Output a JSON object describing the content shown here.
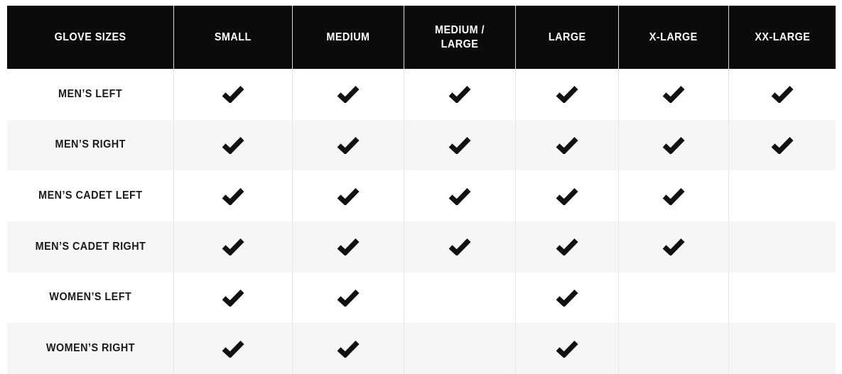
{
  "table": {
    "title": "GLOVE SIZES",
    "header": {
      "columns": [
        "GLOVE SIZES",
        "SMALL",
        "MEDIUM",
        "MEDIUM / LARGE",
        "LARGE",
        "X-LARGE",
        "XX-LARGE"
      ]
    },
    "rows": [
      {
        "label": "MEN’S LEFT",
        "checks": [
          true,
          true,
          true,
          true,
          true,
          true
        ]
      },
      {
        "label": "MEN’S RIGHT",
        "checks": [
          true,
          true,
          true,
          true,
          true,
          true
        ]
      },
      {
        "label": "MEN’S CADET LEFT",
        "checks": [
          true,
          true,
          true,
          true,
          true,
          false
        ]
      },
      {
        "label": "MEN’S CADET RIGHT",
        "checks": [
          true,
          true,
          true,
          true,
          true,
          false
        ]
      },
      {
        "label": "WOMEN’S LEFT",
        "checks": [
          true,
          true,
          false,
          true,
          false,
          false
        ]
      },
      {
        "label": "WOMEN’S RIGHT",
        "checks": [
          true,
          true,
          false,
          true,
          false,
          false
        ]
      }
    ],
    "check_icon": "checkmark",
    "colors": {
      "header_bg": "#0b0b0b",
      "header_text": "#ffffff",
      "row_bg": "#ffffff",
      "row_alt_bg": "#f6f6f6",
      "label_text": "#1b1b1b",
      "check": "#111111",
      "separator_header": "#d9d9d9",
      "separator_body": "#e7e7e7"
    }
  },
  "chart_data": {
    "type": "table",
    "title": "GLOVE SIZES",
    "columns": [
      "SMALL",
      "MEDIUM",
      "MEDIUM / LARGE",
      "LARGE",
      "X-LARGE",
      "XX-LARGE"
    ],
    "row_labels": [
      "MEN’S LEFT",
      "MEN’S RIGHT",
      "MEN’S CADET LEFT",
      "MEN’S CADET RIGHT",
      "WOMEN’S LEFT",
      "WOMEN’S RIGHT"
    ],
    "values": [
      [
        true,
        true,
        true,
        true,
        true,
        true
      ],
      [
        true,
        true,
        true,
        true,
        true,
        true
      ],
      [
        true,
        true,
        true,
        true,
        true,
        false
      ],
      [
        true,
        true,
        true,
        true,
        true,
        false
      ],
      [
        true,
        true,
        false,
        true,
        false,
        false
      ],
      [
        true,
        true,
        false,
        true,
        false,
        false
      ]
    ],
    "legend": "checkmark = size available",
    "layout": "zebra-striped availability matrix, black header row"
  }
}
